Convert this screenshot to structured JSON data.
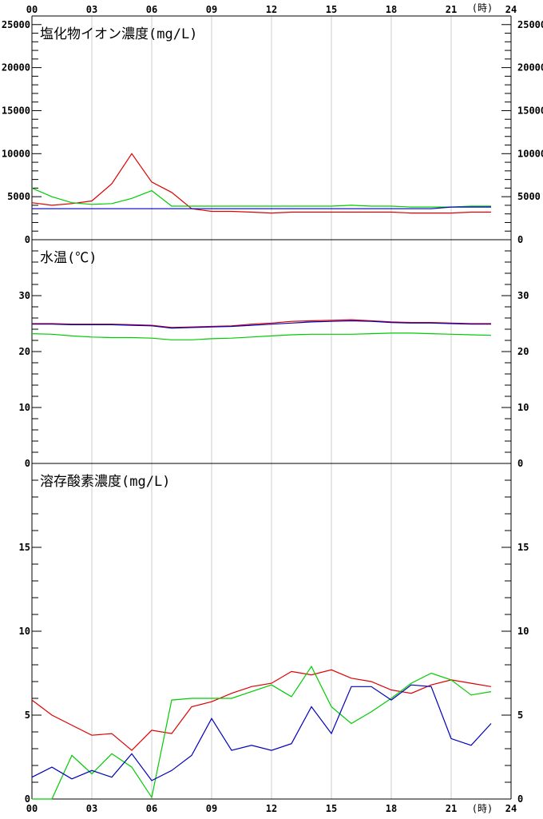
{
  "x_axis": {
    "tick_labels": [
      "00",
      "03",
      "06",
      "09",
      "12",
      "15",
      "18",
      "21",
      "24"
    ],
    "unit": "(時)"
  },
  "colors": {
    "red": "#dd0000",
    "green": "#00cc00",
    "blue": "#0000bb",
    "grid": "#cccccc",
    "axis": "#000000"
  },
  "chart_data": [
    {
      "type": "line",
      "title": "塩化物イオン濃度(mg/L)",
      "ylim": [
        0,
        26000
      ],
      "y_tick_labels": [
        "0",
        "5000",
        "10000",
        "15000",
        "20000",
        "25000"
      ],
      "x": [
        0,
        1,
        2,
        3,
        4,
        5,
        6,
        7,
        8,
        9,
        10,
        11,
        12,
        13,
        14,
        15,
        16,
        17,
        18,
        19,
        20,
        21,
        22,
        23
      ],
      "series": [
        {
          "color": "red",
          "values": [
            4300,
            4000,
            4200,
            4500,
            6500,
            10000,
            6700,
            5500,
            3600,
            3300,
            3300,
            3200,
            3100,
            3200,
            3200,
            3200,
            3200,
            3200,
            3200,
            3100,
            3100,
            3100,
            3200,
            3200
          ]
        },
        {
          "color": "green",
          "values": [
            6000,
            5000,
            4300,
            4100,
            4200,
            4800,
            5700,
            3900,
            3900,
            3900,
            3900,
            3900,
            3900,
            3900,
            3900,
            3900,
            4000,
            3900,
            3900,
            3800,
            3800,
            3800,
            3900,
            3900
          ]
        },
        {
          "color": "blue",
          "values": [
            3600,
            3600,
            3600,
            3600,
            3600,
            3600,
            3600,
            3600,
            3600,
            3600,
            3600,
            3600,
            3600,
            3600,
            3600,
            3600,
            3600,
            3600,
            3600,
            3600,
            3600,
            3800,
            3800,
            3800
          ]
        }
      ]
    },
    {
      "type": "line",
      "title": "水温(℃)",
      "ylim": [
        0,
        40
      ],
      "y_tick_labels": [
        "0",
        "10",
        "20",
        "30"
      ],
      "x": [
        0,
        1,
        2,
        3,
        4,
        5,
        6,
        7,
        8,
        9,
        10,
        11,
        12,
        13,
        14,
        15,
        16,
        17,
        18,
        19,
        20,
        21,
        22,
        23
      ],
      "series": [
        {
          "color": "red",
          "values": [
            25.0,
            25.0,
            24.9,
            24.9,
            24.9,
            24.8,
            24.7,
            24.3,
            24.4,
            24.5,
            24.6,
            24.9,
            25.1,
            25.4,
            25.5,
            25.6,
            25.7,
            25.5,
            25.3,
            25.2,
            25.2,
            25.1,
            25.0,
            25.0
          ]
        },
        {
          "color": "blue",
          "values": [
            24.9,
            24.9,
            24.8,
            24.8,
            24.8,
            24.7,
            24.6,
            24.2,
            24.3,
            24.4,
            24.5,
            24.7,
            24.9,
            25.1,
            25.3,
            25.4,
            25.5,
            25.4,
            25.2,
            25.1,
            25.1,
            25.0,
            24.9,
            24.9
          ]
        },
        {
          "color": "green",
          "values": [
            23.2,
            23.1,
            22.8,
            22.6,
            22.5,
            22.5,
            22.4,
            22.1,
            22.1,
            22.3,
            22.4,
            22.6,
            22.8,
            23.0,
            23.1,
            23.1,
            23.1,
            23.2,
            23.3,
            23.3,
            23.2,
            23.1,
            23.0,
            22.9
          ]
        }
      ]
    },
    {
      "type": "line",
      "title": "溶存酸素濃度(mg/L)",
      "ylim": [
        0,
        20
      ],
      "y_tick_labels": [
        "0",
        "5",
        "10",
        "15"
      ],
      "x": [
        0,
        1,
        2,
        3,
        4,
        5,
        6,
        7,
        8,
        9,
        10,
        11,
        12,
        13,
        14,
        15,
        16,
        17,
        18,
        19,
        20,
        21,
        22,
        23
      ],
      "series": [
        {
          "color": "red",
          "values": [
            5.9,
            5.0,
            4.4,
            3.8,
            3.9,
            2.9,
            4.1,
            3.9,
            5.5,
            5.8,
            6.3,
            6.7,
            6.9,
            7.6,
            7.4,
            7.7,
            7.2,
            7.0,
            6.5,
            6.3,
            6.8,
            7.1,
            6.9,
            6.7
          ]
        },
        {
          "color": "green",
          "values": [
            0.0,
            0.0,
            2.6,
            1.5,
            2.7,
            1.9,
            0.1,
            5.9,
            6.0,
            6.0,
            6.0,
            6.4,
            6.8,
            6.1,
            7.9,
            5.5,
            4.5,
            5.2,
            6.0,
            6.9,
            7.5,
            7.1,
            6.2,
            6.4
          ]
        },
        {
          "color": "blue",
          "values": [
            1.3,
            1.9,
            1.2,
            1.7,
            1.3,
            2.7,
            1.1,
            1.7,
            2.6,
            4.8,
            2.9,
            3.2,
            2.9,
            3.3,
            5.5,
            3.9,
            6.7,
            6.7,
            5.9,
            6.8,
            6.7,
            3.6,
            3.2,
            4.5
          ]
        }
      ]
    }
  ]
}
